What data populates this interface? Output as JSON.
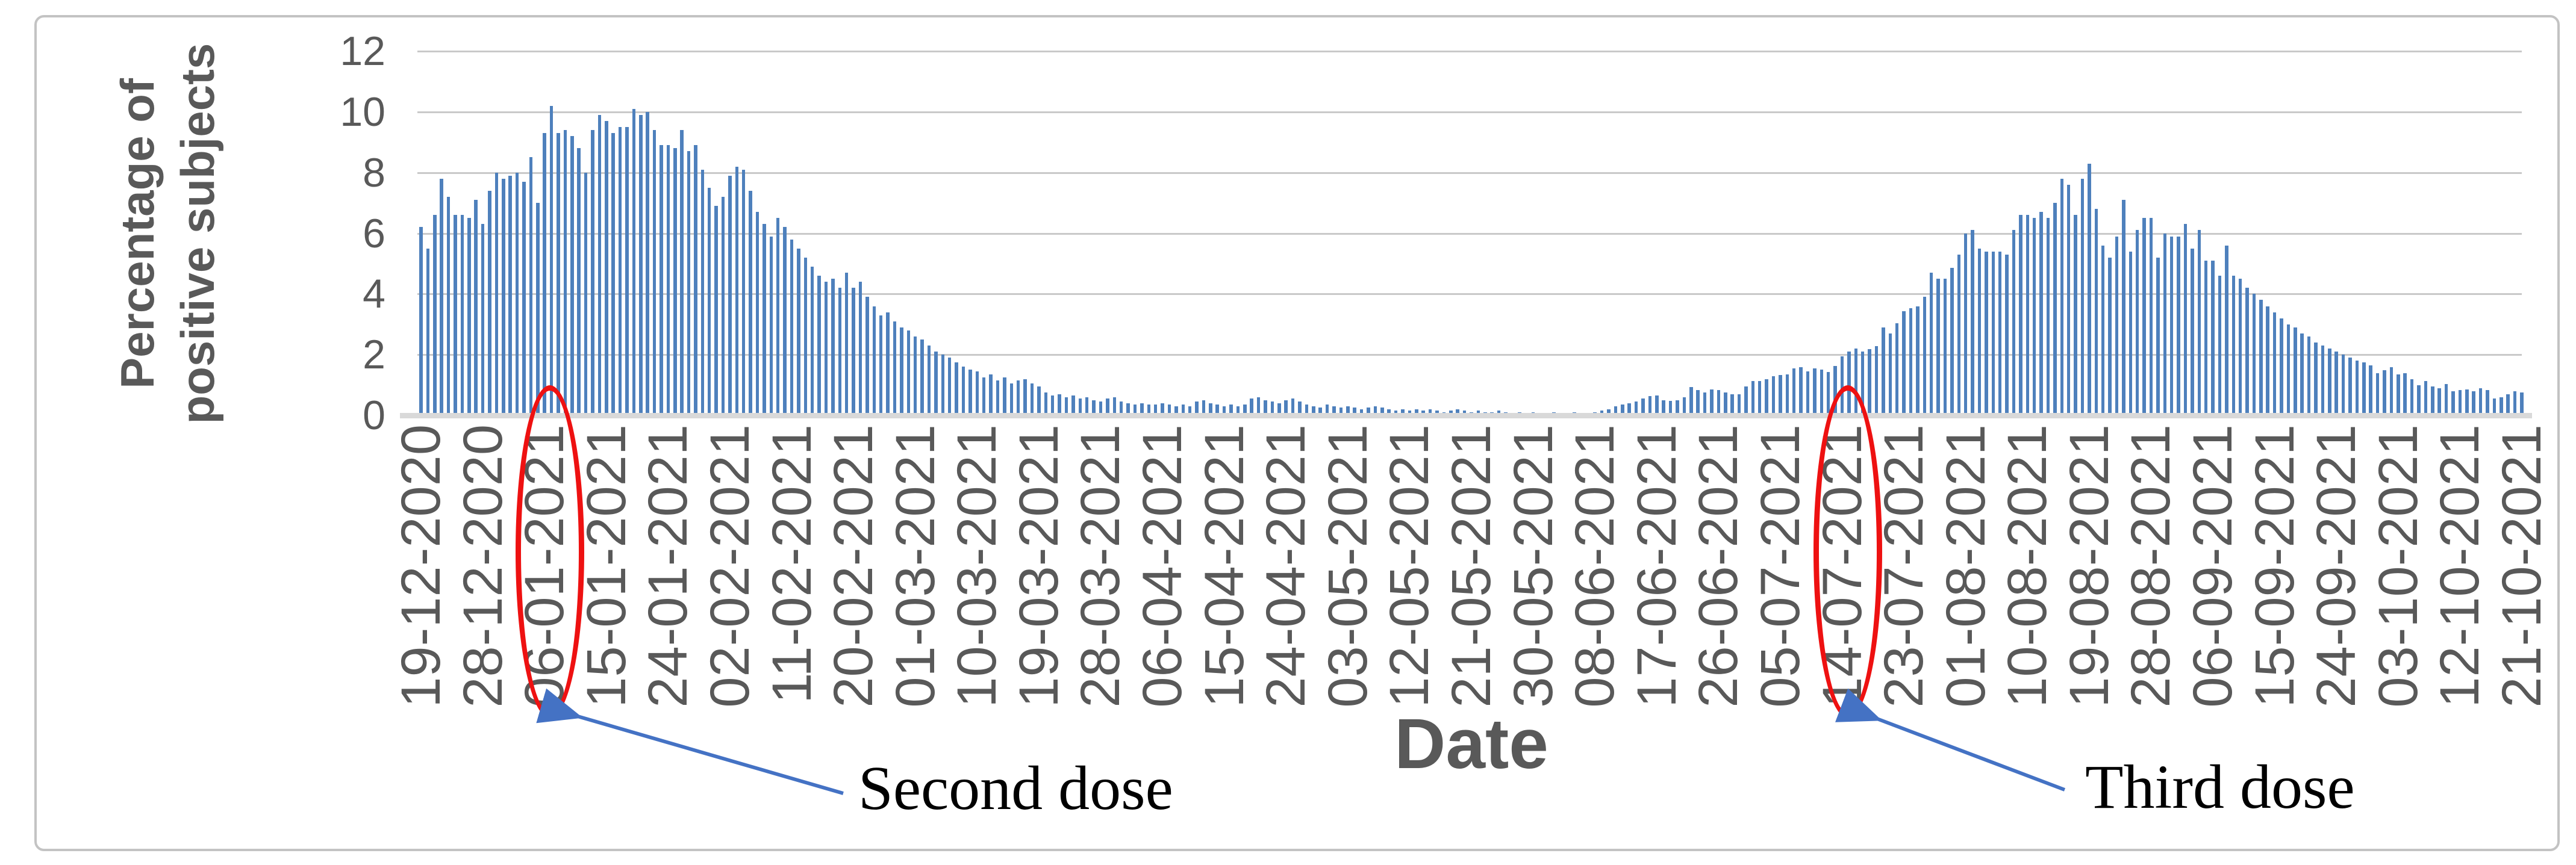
{
  "chart_data": {
    "type": "bar",
    "title": "",
    "xlabel": "Date",
    "ylabel": "Percentage of positive subjects",
    "ylabel_lines": [
      "Percentage of",
      "positive subjects"
    ],
    "ylim": [
      0,
      12
    ],
    "yticks": [
      0,
      2,
      4,
      6,
      8,
      10,
      12
    ],
    "grid": true,
    "legend": "none",
    "bar_color": "#4e80bc",
    "gridline_color": "#c9c9c9",
    "axis_text_color": "#595959",
    "x_unit": "day",
    "x_tick_every_days": 9,
    "x_tick_labels": [
      "19-12-2020",
      "28-12-2020",
      "06-01-2021",
      "15-01-2021",
      "24-01-2021",
      "02-02-2021",
      "11-02-2021",
      "20-02-2021",
      "01-03-2021",
      "10-03-2021",
      "19-03-2021",
      "28-03-2021",
      "06-04-2021",
      "15-04-2021",
      "24-04-2021",
      "03-05-2021",
      "12-05-2021",
      "21-05-2021",
      "30-05-2021",
      "08-06-2021",
      "17-06-2021",
      "26-06-2021",
      "05-07-2021",
      "14-07-2021",
      "23-07-2021",
      "01-08-2021",
      "10-08-2021",
      "19-08-2021",
      "28-08-2021",
      "06-09-2021",
      "15-09-2021",
      "24-09-2021",
      "03-10-2021",
      "12-10-2021",
      "21-10-2021"
    ],
    "values": [
      6.2,
      5.5,
      6.6,
      7.8,
      7.2,
      6.6,
      6.6,
      6.5,
      7.1,
      6.3,
      7.4,
      8.0,
      7.8,
      7.9,
      8.0,
      7.7,
      8.5,
      7.0,
      9.3,
      10.2,
      9.3,
      9.4,
      9.2,
      8.8,
      8.0,
      9.4,
      9.9,
      9.7,
      9.3,
      9.5,
      9.5,
      10.1,
      9.9,
      10.0,
      9.4,
      8.9,
      8.9,
      8.8,
      9.4,
      8.7,
      8.9,
      8.1,
      7.5,
      6.9,
      7.2,
      7.9,
      8.2,
      8.1,
      7.4,
      6.7,
      6.3,
      5.9,
      6.5,
      6.2,
      5.8,
      5.5,
      5.2,
      4.9,
      4.6,
      4.4,
      4.5,
      4.2,
      4.7,
      4.2,
      4.4,
      3.9,
      3.6,
      3.3,
      3.4,
      3.1,
      2.9,
      2.8,
      2.6,
      2.5,
      2.3,
      2.1,
      2.0,
      1.9,
      1.75,
      1.6,
      1.5,
      1.45,
      1.25,
      1.35,
      1.15,
      1.25,
      1.05,
      1.15,
      1.2,
      1.05,
      0.95,
      0.75,
      0.65,
      0.7,
      0.6,
      0.65,
      0.55,
      0.6,
      0.5,
      0.45,
      0.55,
      0.6,
      0.45,
      0.4,
      0.35,
      0.4,
      0.35,
      0.35,
      0.4,
      0.35,
      0.3,
      0.35,
      0.3,
      0.45,
      0.5,
      0.4,
      0.35,
      0.3,
      0.35,
      0.3,
      0.35,
      0.55,
      0.6,
      0.5,
      0.45,
      0.4,
      0.5,
      0.55,
      0.45,
      0.35,
      0.3,
      0.25,
      0.35,
      0.3,
      0.25,
      0.3,
      0.25,
      0.2,
      0.25,
      0.3,
      0.25,
      0.2,
      0.15,
      0.2,
      0.15,
      0.2,
      0.15,
      0.2,
      0.15,
      0.1,
      0.15,
      0.2,
      0.15,
      0.1,
      0.15,
      0.1,
      0.1,
      0.15,
      0.1,
      0.05,
      0.1,
      0.05,
      0.1,
      0.05,
      0.05,
      0.1,
      0.05,
      0.05,
      0.1,
      0.05,
      0.05,
      0.1,
      0.15,
      0.2,
      0.3,
      0.35,
      0.4,
      0.45,
      0.55,
      0.63,
      0.66,
      0.5,
      0.48,
      0.5,
      0.6,
      0.93,
      0.83,
      0.76,
      0.86,
      0.83,
      0.76,
      0.7,
      0.7,
      0.96,
      1.13,
      1.13,
      1.19,
      1.29,
      1.32,
      1.35,
      1.55,
      1.58,
      1.45,
      1.55,
      1.51,
      1.42,
      1.62,
      1.95,
      2.11,
      2.21,
      2.11,
      2.18,
      2.28,
      2.9,
      2.7,
      3.03,
      3.43,
      3.53,
      3.6,
      3.9,
      4.7,
      4.5,
      4.5,
      4.85,
      5.3,
      6.0,
      6.1,
      5.5,
      5.4,
      5.4,
      5.4,
      5.3,
      6.1,
      6.6,
      6.6,
      6.5,
      6.7,
      6.5,
      7.0,
      7.8,
      7.6,
      6.6,
      7.8,
      8.3,
      6.8,
      5.6,
      5.2,
      5.9,
      7.1,
      5.4,
      6.1,
      6.5,
      6.5,
      5.2,
      6.0,
      5.9,
      5.9,
      6.3,
      5.5,
      6.1,
      5.1,
      5.1,
      4.6,
      5.6,
      4.6,
      4.5,
      4.2,
      4.0,
      3.8,
      3.6,
      3.4,
      3.2,
      3.0,
      2.9,
      2.7,
      2.6,
      2.4,
      2.3,
      2.2,
      2.1,
      2.0,
      1.9,
      1.8,
      1.75,
      1.64,
      1.39,
      1.49,
      1.58,
      1.35,
      1.39,
      1.19,
      0.99,
      1.13,
      0.95,
      0.89,
      1.03,
      0.79,
      0.83,
      0.85,
      0.79,
      0.89,
      0.83,
      0.56,
      0.59,
      0.69,
      0.79,
      0.75
    ]
  },
  "annotations": {
    "second_dose": {
      "label": "Second dose",
      "circled_date": "06-01-2021"
    },
    "third_dose": {
      "label": "Third dose",
      "circled_date": "14-07-2021"
    },
    "ellipse_color": "#ee1111",
    "arrow_color": "#4472c4"
  }
}
